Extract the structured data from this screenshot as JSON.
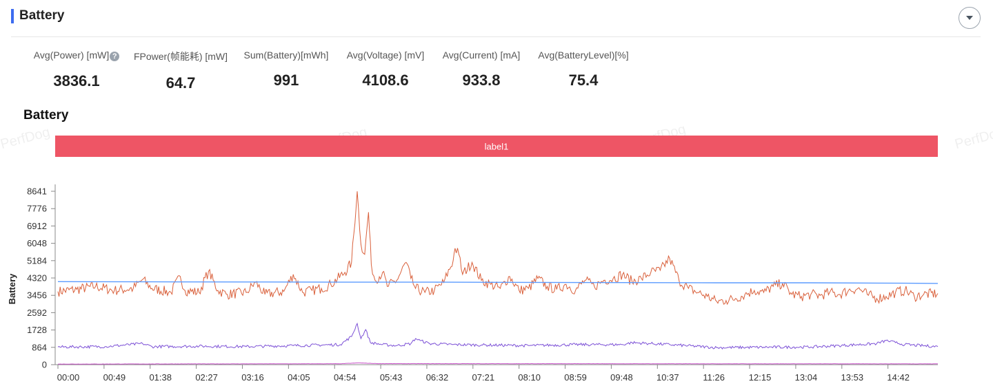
{
  "section": {
    "title": "Battery"
  },
  "stats": [
    {
      "label": "Avg(Power) [mW]",
      "value": "3836.1",
      "help": true
    },
    {
      "label": "FPower(帧能耗) [mW]",
      "value": "64.7"
    },
    {
      "label": "Sum(Battery)[mWh]",
      "value": "991"
    },
    {
      "label": "Avg(Voltage) [mV]",
      "value": "4108.6"
    },
    {
      "label": "Avg(Current) [mA]",
      "value": "933.8"
    },
    {
      "label": "Avg(BatteryLevel)[%]",
      "value": "75.4"
    }
  ],
  "watermarks": [
    "PerfDog",
    "PerfDog",
    "PerfDog",
    "PerfDog"
  ],
  "chart_data": {
    "type": "line",
    "title": "Battery",
    "ylabel": "Battery",
    "xlabel": "",
    "ylim": [
      0,
      8641
    ],
    "yticks": [
      "0",
      "864",
      "1728",
      "2592",
      "3456",
      "4320",
      "5184",
      "6048",
      "6912",
      "7776",
      "8641"
    ],
    "xticks": [
      "00:00",
      "00:49",
      "01:38",
      "02:27",
      "03:16",
      "04:05",
      "04:54",
      "05:43",
      "06:32",
      "07:21",
      "08:10",
      "08:59",
      "09:48",
      "10:37",
      "11:26",
      "12:15",
      "13:04",
      "13:53",
      "14:42"
    ],
    "x_tick_interval_seconds": 49,
    "duration_seconds": 935,
    "band_label": "label1",
    "grid": false,
    "colors": {
      "power": "#d9603b",
      "voltage": "#5b9bff",
      "current": "#7b4fd6",
      "level": "#c74fc7",
      "band": "#ee5565"
    },
    "series": [
      {
        "key": "power",
        "color": "#d9603b",
        "points": [
          [
            0,
            3650
          ],
          [
            20,
            3750
          ],
          [
            40,
            3900
          ],
          [
            60,
            3700
          ],
          [
            80,
            3800
          ],
          [
            90,
            4250
          ],
          [
            100,
            3800
          ],
          [
            120,
            3600
          ],
          [
            130,
            4400
          ],
          [
            135,
            3700
          ],
          [
            150,
            3600
          ],
          [
            160,
            4650
          ],
          [
            170,
            3700
          ],
          [
            180,
            3500
          ],
          [
            200,
            3600
          ],
          [
            210,
            4100
          ],
          [
            220,
            3500
          ],
          [
            240,
            3650
          ],
          [
            250,
            4500
          ],
          [
            260,
            3600
          ],
          [
            270,
            3700
          ],
          [
            280,
            3800
          ],
          [
            290,
            4000
          ],
          [
            305,
            4600
          ],
          [
            312,
            5100
          ],
          [
            318,
            8641
          ],
          [
            322,
            6000
          ],
          [
            326,
            5500
          ],
          [
            330,
            7600
          ],
          [
            333,
            5000
          ],
          [
            337,
            4200
          ],
          [
            345,
            4600
          ],
          [
            350,
            3900
          ],
          [
            360,
            4200
          ],
          [
            370,
            5100
          ],
          [
            375,
            4300
          ],
          [
            380,
            3800
          ],
          [
            390,
            3600
          ],
          [
            400,
            3700
          ],
          [
            410,
            4100
          ],
          [
            420,
            5200
          ],
          [
            422,
            5800
          ],
          [
            426,
            5500
          ],
          [
            430,
            4500
          ],
          [
            440,
            5100
          ],
          [
            450,
            4200
          ],
          [
            460,
            4000
          ],
          [
            470,
            3800
          ],
          [
            480,
            4400
          ],
          [
            490,
            3700
          ],
          [
            500,
            3800
          ],
          [
            510,
            4300
          ],
          [
            520,
            3900
          ],
          [
            530,
            3750
          ],
          [
            540,
            4000
          ],
          [
            550,
            3700
          ],
          [
            560,
            4200
          ],
          [
            570,
            3900
          ],
          [
            580,
            4200
          ],
          [
            590,
            4300
          ],
          [
            600,
            4500
          ],
          [
            610,
            4150
          ],
          [
            620,
            4300
          ],
          [
            630,
            4600
          ],
          [
            640,
            4700
          ],
          [
            650,
            5300
          ],
          [
            660,
            4200
          ],
          [
            670,
            3800
          ],
          [
            680,
            3600
          ],
          [
            690,
            3400
          ],
          [
            700,
            3150
          ],
          [
            710,
            3200
          ],
          [
            720,
            3300
          ],
          [
            730,
            3500
          ],
          [
            740,
            3700
          ],
          [
            750,
            3600
          ],
          [
            760,
            3900
          ],
          [
            770,
            4050
          ],
          [
            780,
            3500
          ],
          [
            790,
            3400
          ],
          [
            800,
            3500
          ],
          [
            810,
            3450
          ],
          [
            820,
            3600
          ],
          [
            830,
            3500
          ],
          [
            840,
            3700
          ],
          [
            850,
            3800
          ],
          [
            860,
            3500
          ],
          [
            870,
            3300
          ],
          [
            880,
            3400
          ],
          [
            890,
            3600
          ],
          [
            900,
            3700
          ],
          [
            910,
            3400
          ],
          [
            920,
            3500
          ],
          [
            935,
            3550
          ]
        ]
      },
      {
        "key": "voltage",
        "color": "#5b9bff",
        "points": [
          [
            0,
            4140
          ],
          [
            100,
            4130
          ],
          [
            200,
            4120
          ],
          [
            300,
            4110
          ],
          [
            400,
            4110
          ],
          [
            500,
            4100
          ],
          [
            600,
            4090
          ],
          [
            700,
            4080
          ],
          [
            800,
            4080
          ],
          [
            900,
            4060
          ],
          [
            935,
            4050
          ]
        ]
      },
      {
        "key": "current",
        "color": "#7b4fd6",
        "points": [
          [
            0,
            880
          ],
          [
            50,
            900
          ],
          [
            90,
            1050
          ],
          [
            100,
            900
          ],
          [
            150,
            920
          ],
          [
            200,
            900
          ],
          [
            250,
            950
          ],
          [
            300,
            1000
          ],
          [
            312,
            1400
          ],
          [
            318,
            2050
          ],
          [
            322,
            1300
          ],
          [
            327,
            1750
          ],
          [
            332,
            1100
          ],
          [
            345,
            1000
          ],
          [
            360,
            950
          ],
          [
            375,
            1050
          ],
          [
            380,
            1300
          ],
          [
            385,
            1200
          ],
          [
            395,
            1050
          ],
          [
            420,
            1000
          ],
          [
            450,
            980
          ],
          [
            500,
            950
          ],
          [
            550,
            1000
          ],
          [
            600,
            1000
          ],
          [
            610,
            1100
          ],
          [
            630,
            1050
          ],
          [
            650,
            1000
          ],
          [
            700,
            850
          ],
          [
            750,
            870
          ],
          [
            800,
            880
          ],
          [
            830,
            950
          ],
          [
            850,
            1000
          ],
          [
            870,
            1050
          ],
          [
            880,
            1200
          ],
          [
            890,
            1100
          ],
          [
            900,
            1000
          ],
          [
            935,
            900
          ]
        ]
      },
      {
        "key": "level",
        "color": "#c74fc7",
        "points": [
          [
            0,
            30
          ],
          [
            300,
            45
          ],
          [
            320,
            90
          ],
          [
            340,
            50
          ],
          [
            600,
            45
          ],
          [
            935,
            40
          ]
        ]
      }
    ]
  }
}
